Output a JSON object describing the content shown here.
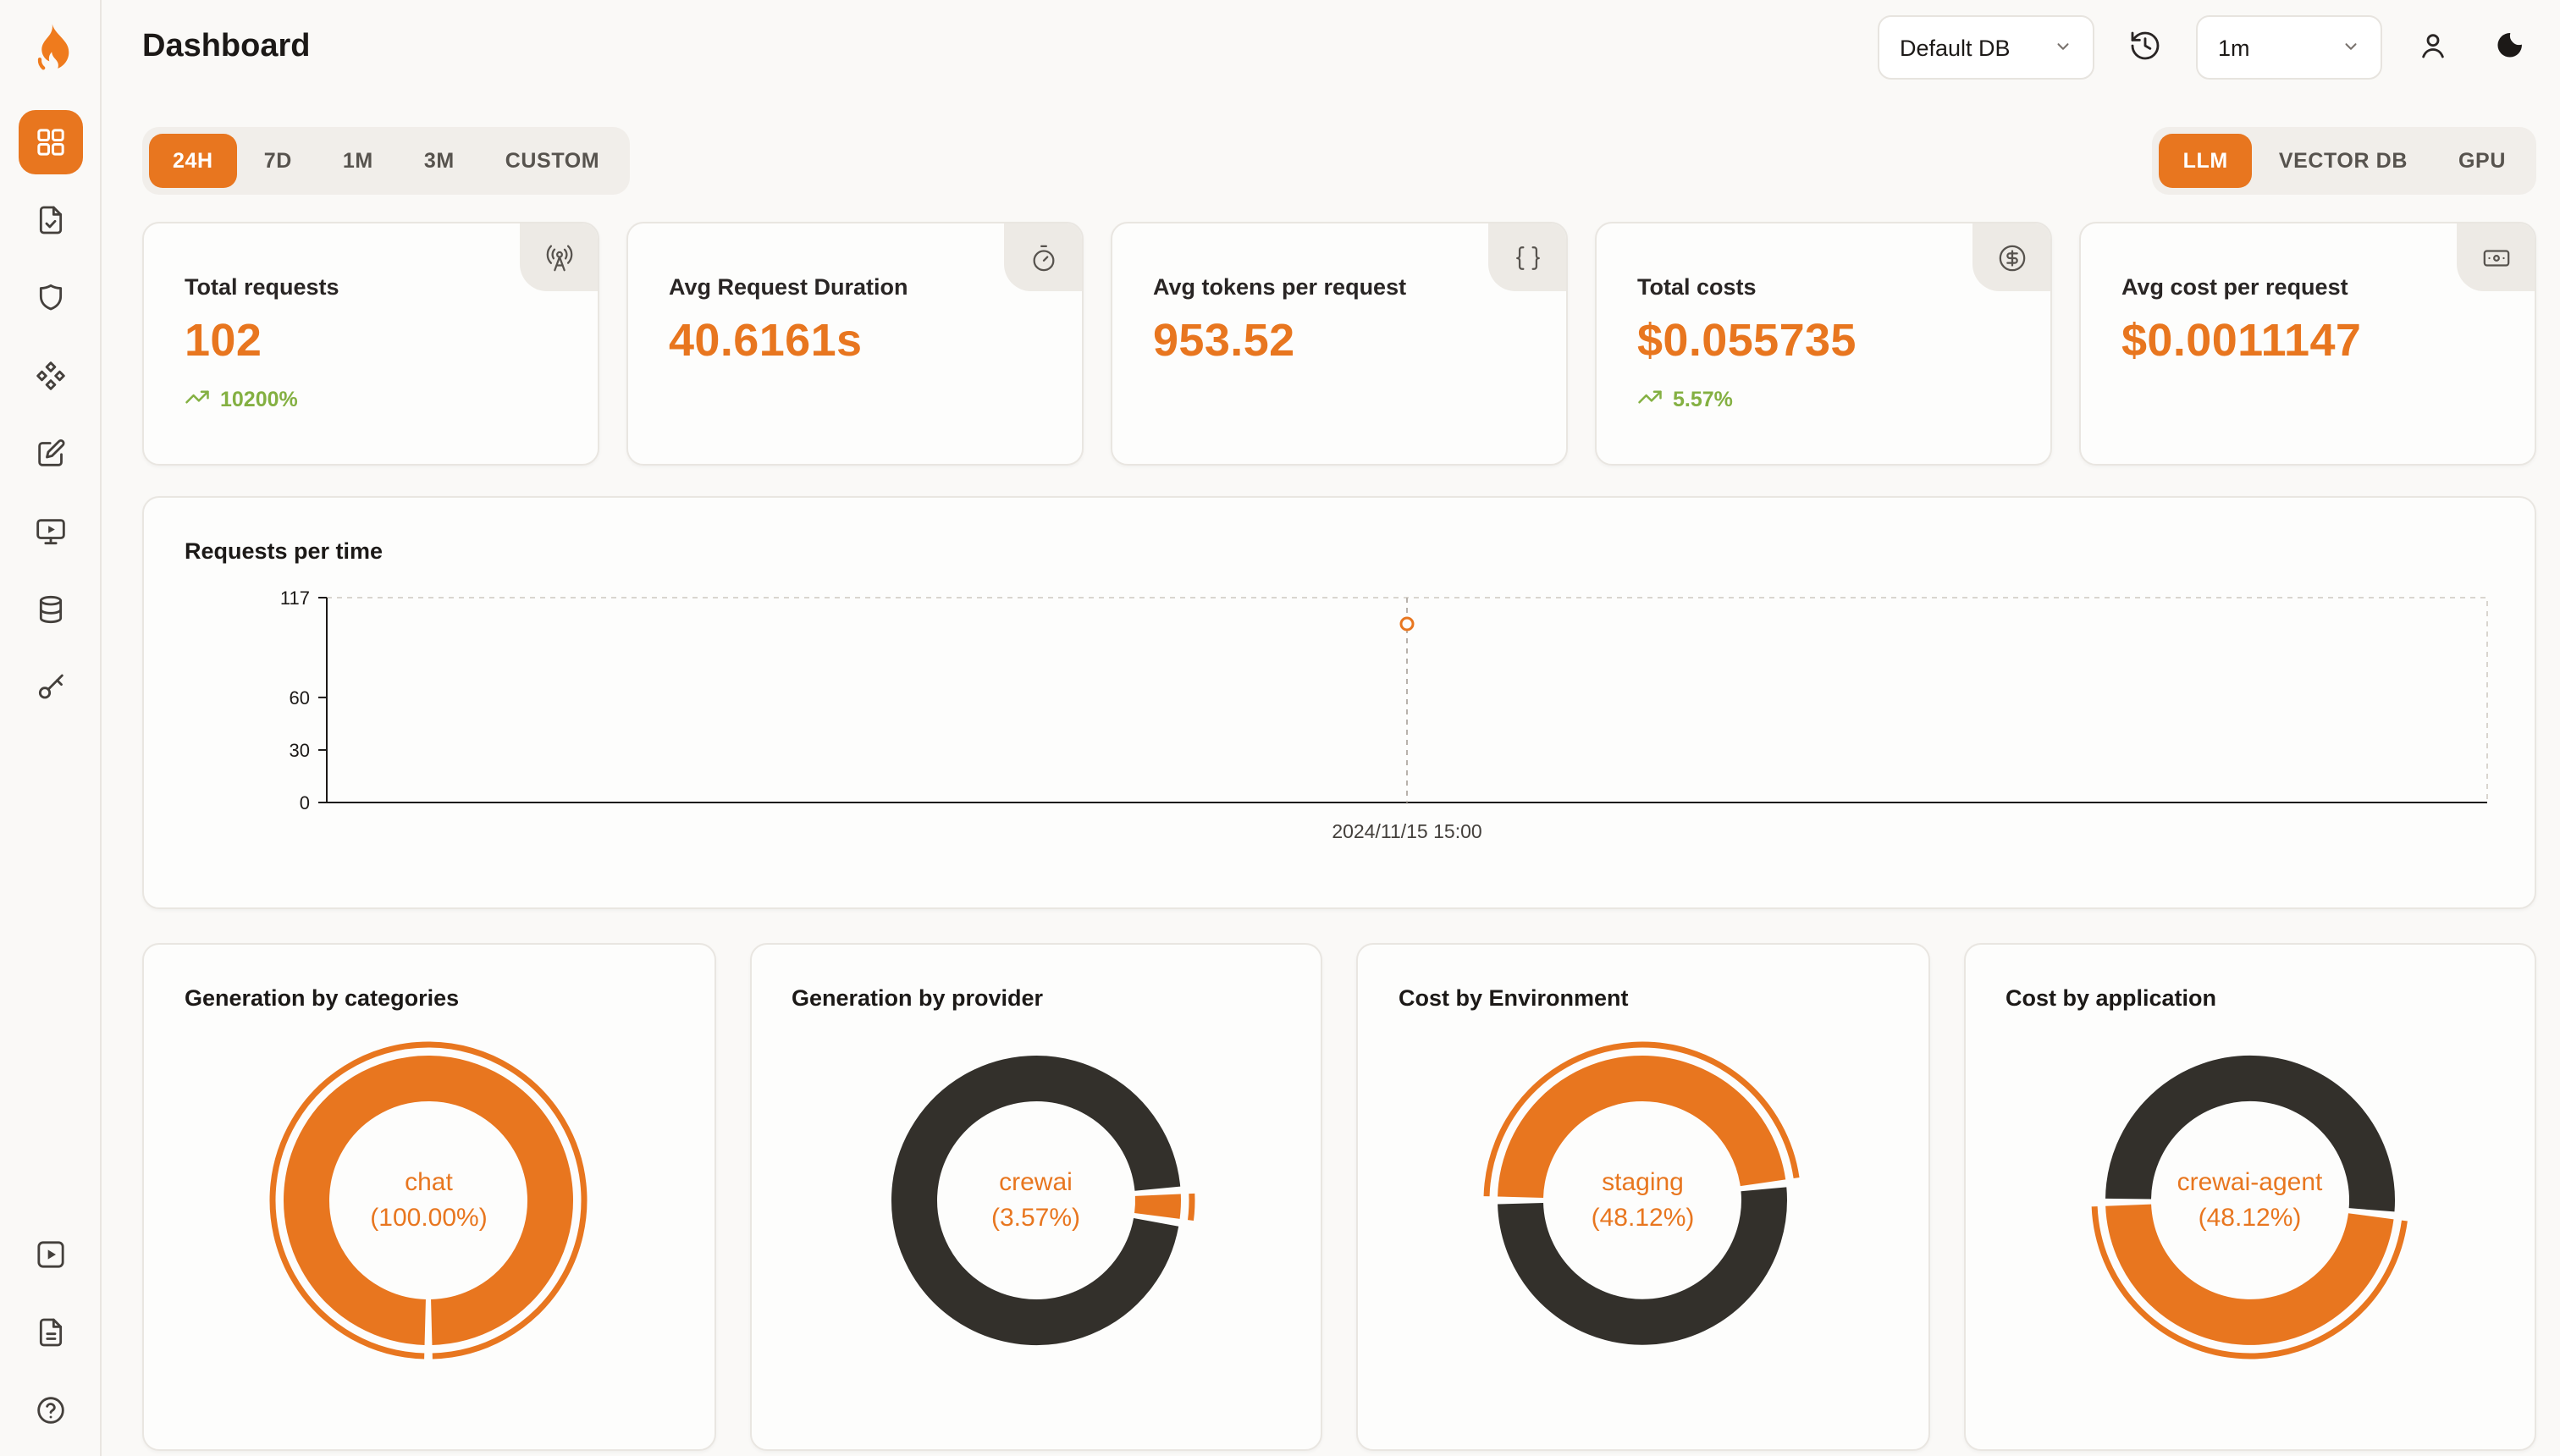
{
  "colors": {
    "accent": "#e8761f",
    "dark_segment": "#33302b",
    "green": "#84b042"
  },
  "header": {
    "title": "Dashboard",
    "db_select": "Default DB",
    "interval_select": "1m",
    "icons": [
      "history-icon",
      "user-icon",
      "moon-icon",
      "chevron-down-icon"
    ]
  },
  "sidebar": {
    "logo_icon": "flame-logo",
    "items": [
      {
        "icon": "dashboard-grid-icon",
        "active": true
      },
      {
        "icon": "file-requests-icon",
        "active": false
      },
      {
        "icon": "shield-icon",
        "active": false
      },
      {
        "icon": "nodes-icon",
        "active": false
      },
      {
        "icon": "edit-square-icon",
        "active": false
      },
      {
        "icon": "monitor-play-icon",
        "active": false
      },
      {
        "icon": "database-icon",
        "active": false
      },
      {
        "icon": "key-icon",
        "active": false
      }
    ],
    "footer_items": [
      {
        "icon": "play-square-icon"
      },
      {
        "icon": "file-text-icon"
      },
      {
        "icon": "help-circle-icon"
      }
    ]
  },
  "time_tabs": [
    {
      "label": "24H",
      "active": true
    },
    {
      "label": "7D",
      "active": false
    },
    {
      "label": "1M",
      "active": false
    },
    {
      "label": "3M",
      "active": false
    },
    {
      "label": "CUSTOM",
      "active": false
    }
  ],
  "resource_tabs": [
    {
      "label": "LLM",
      "active": true
    },
    {
      "label": "VECTOR DB",
      "active": false
    },
    {
      "label": "GPU",
      "active": false
    }
  ],
  "stats": [
    {
      "label": "Total requests",
      "value": "102",
      "delta": "10200%",
      "icon": "radio-tower-icon"
    },
    {
      "label": "Avg Request Duration",
      "value": "40.6161s",
      "icon": "timer-icon"
    },
    {
      "label": "Avg tokens per request",
      "value": "953.52",
      "icon": "braces-icon"
    },
    {
      "label": "Total costs",
      "value": "$0.055735",
      "delta": "5.57%",
      "icon": "circle-dollar-icon"
    },
    {
      "label": "Avg cost per request",
      "value": "$0.0011147",
      "icon": "banknote-icon"
    }
  ],
  "chart_data": [
    {
      "type": "line",
      "title": "Requests per time",
      "x": [
        "2024/11/15 15:00"
      ],
      "series": [
        {
          "name": "requests",
          "values": [
            102
          ]
        }
      ],
      "ylim": [
        0,
        117
      ],
      "yticks": [
        0,
        30,
        60,
        117
      ],
      "grid": "dashed-frame",
      "point_style": "hollow-circle"
    },
    {
      "type": "pie",
      "title": "Generation by categories",
      "center": {
        "label": "chat",
        "pct": "(100.00%)"
      },
      "start_deg": 180,
      "segments": [
        {
          "label": "chat",
          "pct": 100,
          "color": "#e8761f"
        }
      ]
    },
    {
      "type": "pie",
      "title": "Generation by provider",
      "center": {
        "label": "crewai",
        "pct": "(3.57%)"
      },
      "start_deg": 86,
      "segments": [
        {
          "label": "crewai",
          "pct": 3.57,
          "color": "#e8761f"
        },
        {
          "pct": 96.43,
          "color": "#33302b"
        }
      ]
    },
    {
      "type": "pie",
      "title": "Cost by Environment",
      "center": {
        "label": "staging",
        "pct": "(48.12%)"
      },
      "start_deg": 270,
      "segments": [
        {
          "label": "staging",
          "pct": 48.12,
          "color": "#e8761f"
        },
        {
          "pct": 51.88,
          "color": "#33302b"
        }
      ]
    },
    {
      "type": "pie",
      "title": "Cost by application",
      "center": {
        "label": "crewai-agent",
        "pct": "(48.12%)"
      },
      "start_deg": 96,
      "segments": [
        {
          "label": "crewai-agent",
          "pct": 48.12,
          "color": "#e8761f"
        },
        {
          "pct": 51.88,
          "color": "#33302b"
        }
      ]
    }
  ]
}
